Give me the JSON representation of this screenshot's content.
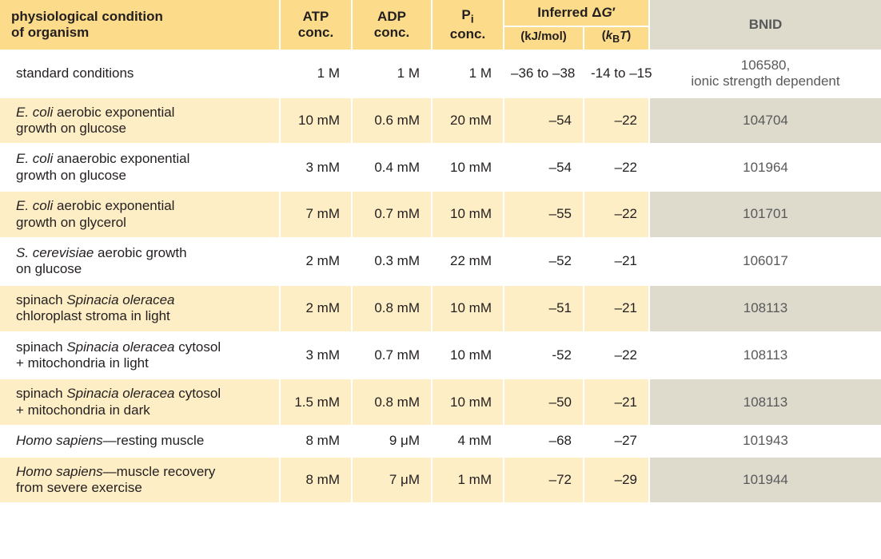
{
  "colors": {
    "header_bg": "#fcdc8a",
    "row_odd_bg": "#fdeec5",
    "row_even_bg": "#ffffff",
    "bnid_header_bg": "#dedbcc",
    "bnid_odd_bg": "#dedbcc",
    "text": "#231f20",
    "bnid_text": "#58595b",
    "separator": "#ffffff"
  },
  "headers": {
    "condition_line1": "physiological condition",
    "condition_line2": "of organism",
    "atp_line1": "ATP",
    "atp_line2": "conc.",
    "adp_line1": "ADP",
    "adp_line2": "conc.",
    "pi_html": "P<sub>i</sub><br>conc.",
    "dg_html": "Inferred Δ<i>G</i>′",
    "dg_kj": "(kJ/mol)",
    "dg_kbt_html": "(<i>k</i><sub>B</sub><i>T</i>)",
    "bnid": "BNID"
  },
  "rows": [
    {
      "cond_html": "standard conditions",
      "atp": "1 M",
      "adp": "1 M",
      "pi": "1 M",
      "kj": "–36 to –38",
      "kbt": "-14 to –15",
      "bnid_html": "106580,<br>ionic strength dependent"
    },
    {
      "cond_html": "<i>E. coli</i> aerobic exponential<br>growth on glucose",
      "atp": "10 mM",
      "adp": "0.6 mM",
      "pi": "20 mM",
      "kj": "–54",
      "kbt": "–22",
      "bnid_html": "104704"
    },
    {
      "cond_html": "<i>E. coli</i> anaerobic exponential<br>growth on glucose",
      "atp": "3 mM",
      "adp": "0.4 mM",
      "pi": "10 mM",
      "kj": "–54",
      "kbt": "–22",
      "bnid_html": "101964"
    },
    {
      "cond_html": "<i>E. coli</i> aerobic exponential<br>growth on glycerol",
      "atp": "7 mM",
      "adp": "0.7 mM",
      "pi": "10 mM",
      "kj": "–55",
      "kbt": "–22",
      "bnid_html": "101701"
    },
    {
      "cond_html": "<i>S. cerevisiae</i> aerobic growth<br>on glucose",
      "atp": "2 mM",
      "adp": "0.3 mM",
      "pi": "22 mM",
      "kj": "–52",
      "kbt": "–21",
      "bnid_html": "106017"
    },
    {
      "cond_html": "spinach <i>Spinacia oleracea</i><br>chloroplast stroma in light",
      "atp": "2 mM",
      "adp": "0.8 mM",
      "pi": "10 mM",
      "kj": "–51",
      "kbt": "–21",
      "bnid_html": "108113"
    },
    {
      "cond_html": "spinach <i>Spinacia oleracea</i> cytosol<br>+ mitochondria in light",
      "atp": "3 mM",
      "adp": "0.7 mM",
      "pi": "10 mM",
      "kj": "-52",
      "kbt": "–22",
      "bnid_html": "108113"
    },
    {
      "cond_html": "spinach <i>Spinacia oleracea</i> cytosol<br>+ mitochondria in dark",
      "atp": "1.5 mM",
      "adp": "0.8 mM",
      "pi": "10 mM",
      "kj": "–50",
      "kbt": "–21",
      "bnid_html": "108113"
    },
    {
      "cond_html": "<i>Homo sapiens</i>—resting muscle",
      "atp": "8 mM",
      "adp": "9 μM",
      "pi": "4 mM",
      "kj": "–68",
      "kbt": "–27",
      "bnid_html": "101943"
    },
    {
      "cond_html": "<i>Homo sapiens</i>—muscle recovery<br>from severe exercise",
      "atp": "8 mM",
      "adp": "7 μM",
      "pi": "1 mM",
      "kj": "–72",
      "kbt": "–29",
      "bnid_html": "101944"
    }
  ]
}
